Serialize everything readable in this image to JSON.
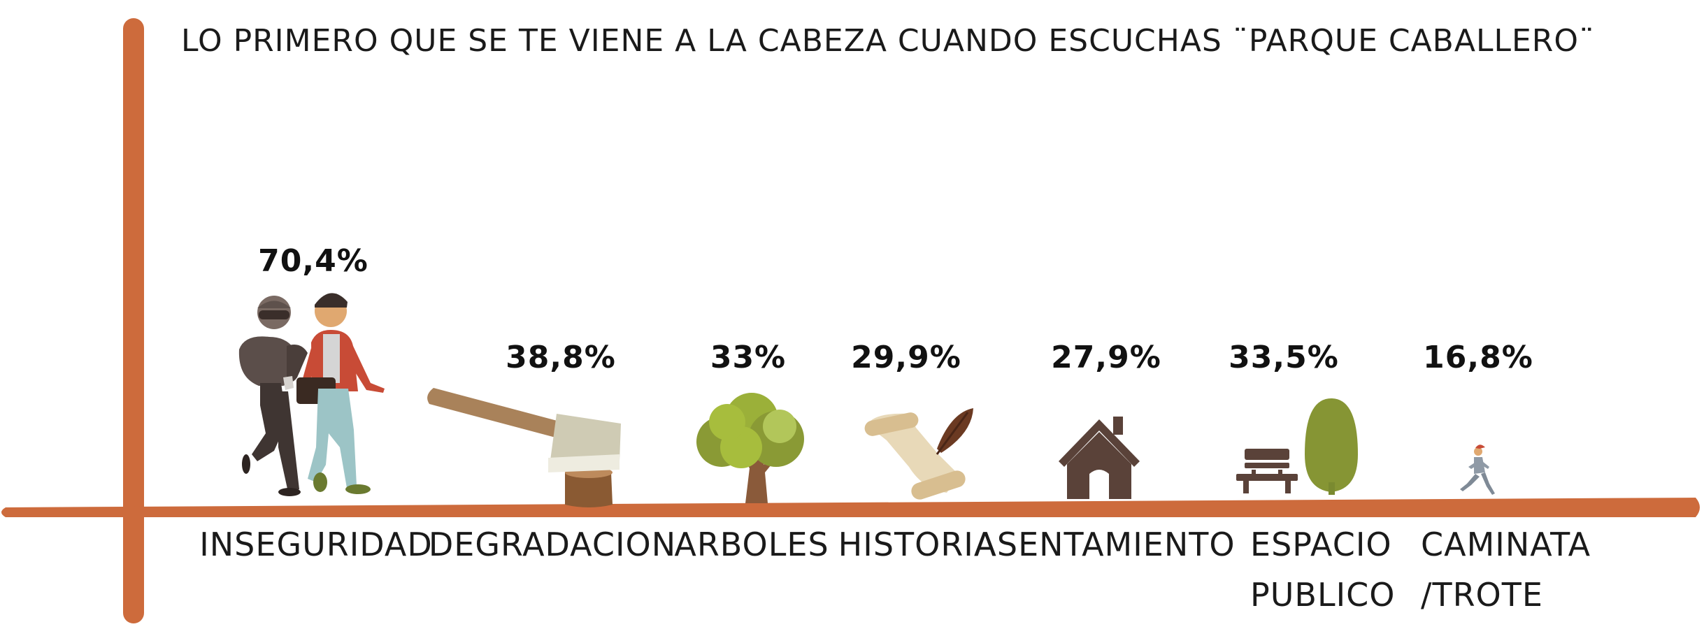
{
  "chart_data": {
    "type": "bar",
    "title": "LO PRIMERO QUE SE TE VIENE A LA CABEZA CUANDO ESCUCHAS ¨PARQUE CABALLERO¨",
    "categories": [
      {
        "label_lines": [
          "INSEGURIDAD"
        ],
        "icon": "thief-icon",
        "value": 70.4,
        "value_label": "70,4%"
      },
      {
        "label_lines": [
          "DEGRADACION"
        ],
        "icon": "axe-icon",
        "value": 38.8,
        "value_label": "38,8%"
      },
      {
        "label_lines": [
          "ARBOLES"
        ],
        "icon": "tree-icon",
        "value": 33,
        "value_label": "33%"
      },
      {
        "label_lines": [
          "HISTORIA"
        ],
        "icon": "scroll-quill-icon",
        "value": 29.9,
        "value_label": "29,9%"
      },
      {
        "label_lines": [
          "ASENTAMIENTO"
        ],
        "icon": "house-icon",
        "value": 27.9,
        "value_label": "27,9%"
      },
      {
        "label_lines": [
          "ESPACIO",
          "PUBLICO"
        ],
        "icon": "bench-tree-icon",
        "value": 33.5,
        "value_label": "33,5%"
      },
      {
        "label_lines": [
          "CAMINATA",
          "/TROTE"
        ],
        "icon": "runner-icon",
        "value": 16.8,
        "value_label": "16,8%"
      }
    ],
    "colors": {
      "axis": "#cd6b3c",
      "dark": "#5a4239",
      "green": "#8a9a35",
      "wood": "#a9825a",
      "paper": "#e8d9b8"
    }
  }
}
